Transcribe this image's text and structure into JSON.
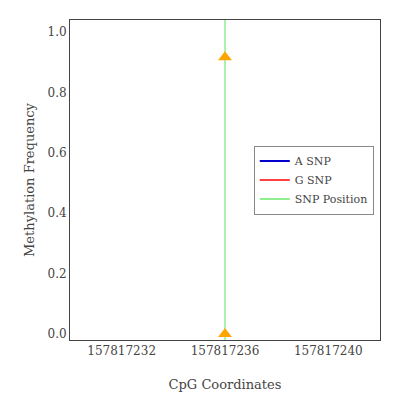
{
  "chart_data": {
    "type": "scatter",
    "xlabel": "CpG Coordinates",
    "ylabel": "Methylation Frequency",
    "xlim": [
      157817230,
      157817242
    ],
    "ylim": [
      -0.02,
      1.04
    ],
    "xticks": [
      157817232,
      157817236,
      157817240
    ],
    "yticks": [
      {
        "value": 0,
        "label": "0.0"
      },
      0.2,
      0.4,
      0.6,
      0.8,
      {
        "value": 1,
        "label": "1.0"
      }
    ],
    "grid": false,
    "legend": "right",
    "series": [
      {
        "type": "scatter",
        "marker": "triangle-up",
        "color": "#ffa500",
        "x": [
          157817236,
          157817236
        ],
        "values": [
          0.917,
          0.0
        ]
      },
      {
        "name": "A SNP",
        "type": "line",
        "line_style": "solid",
        "color": "#0000cd",
        "x": [],
        "values": []
      },
      {
        "name": "G SNP",
        "type": "line",
        "line_style": "solid",
        "color": "#ff4040",
        "x": [],
        "values": []
      },
      {
        "name": "SNP Position",
        "type": "vline",
        "line_style": "solid",
        "color": "#90ee90",
        "x": [
          157817236
        ]
      }
    ]
  }
}
